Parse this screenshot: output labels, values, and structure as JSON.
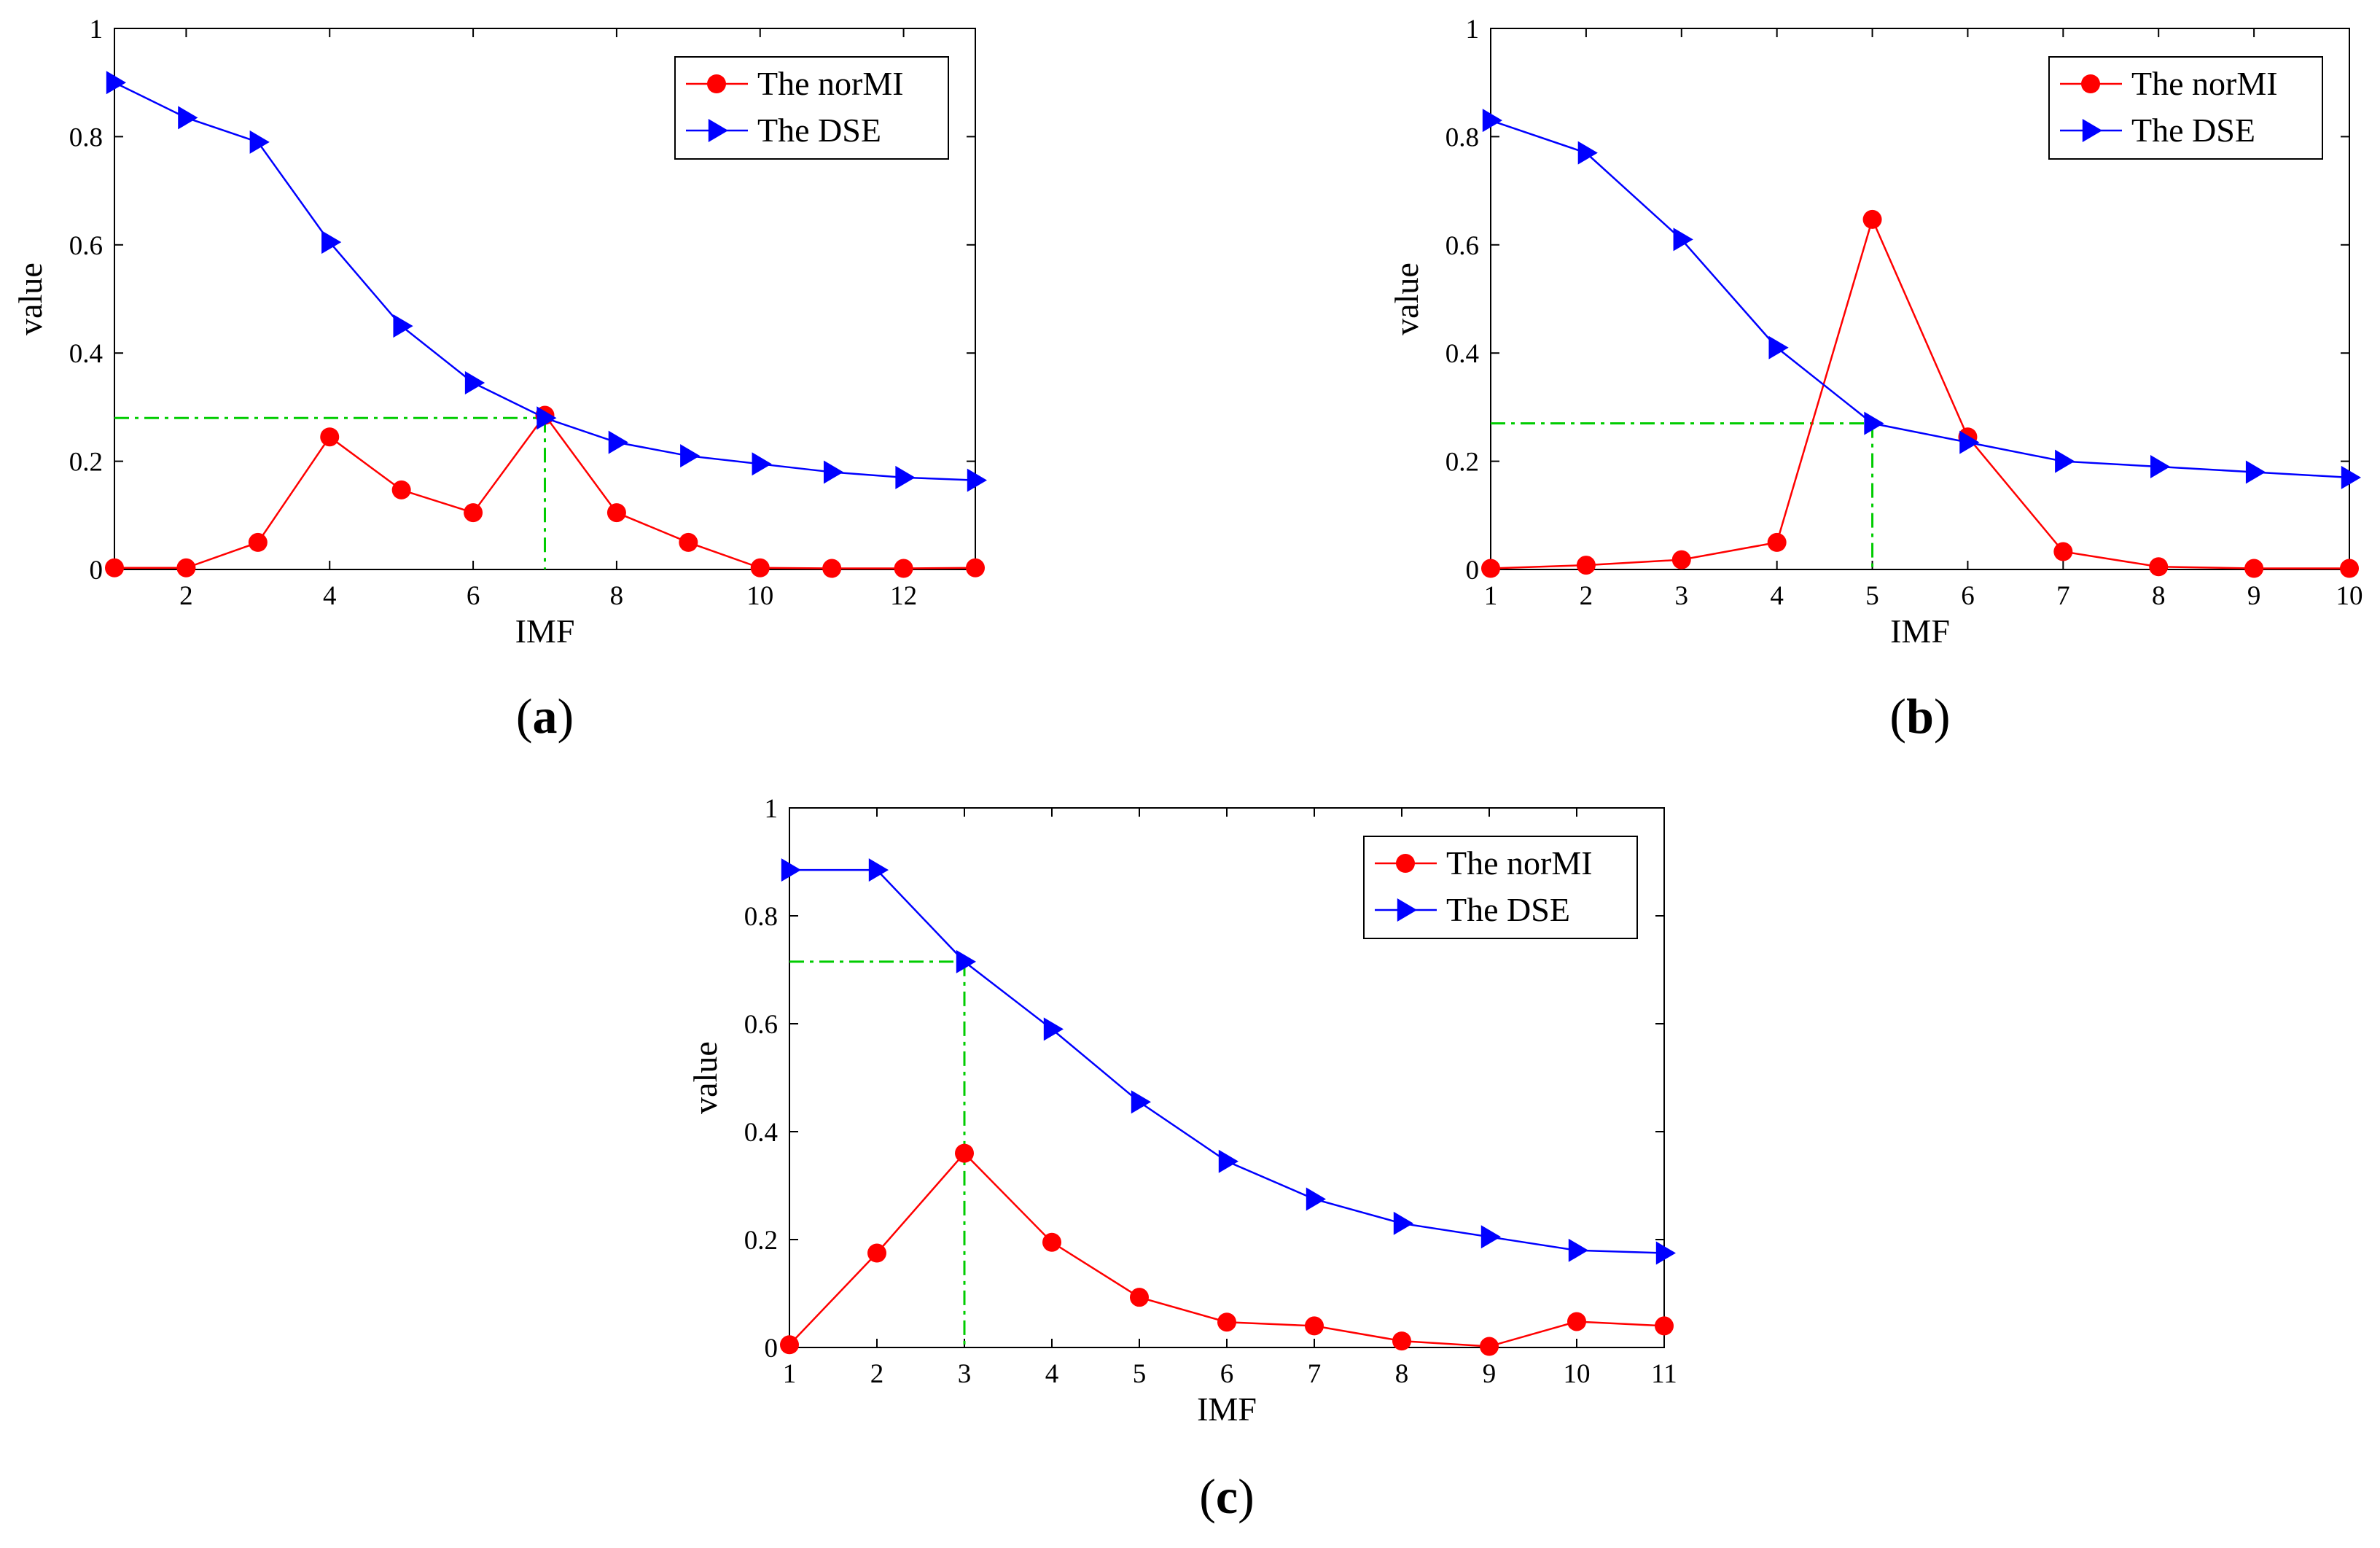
{
  "figure": {
    "panel_labels": [
      "(a)",
      "(b)",
      "(c)"
    ]
  },
  "colors": {
    "normi": "#ff0000",
    "dse": "#0000ff",
    "marker_line": "#00cc00",
    "axis": "#000000"
  },
  "chart_data": [
    {
      "panel": "a",
      "label_letter": "a",
      "type": "line",
      "xlabel": "IMF",
      "ylabel": "value",
      "xlim": [
        1,
        13
      ],
      "ylim": [
        0,
        1
      ],
      "xticks": [
        2,
        4,
        6,
        8,
        10,
        12
      ],
      "yticks": [
        0,
        0.2,
        0.4,
        0.6,
        0.8,
        1
      ],
      "ytick_labels": [
        "0",
        "0.2",
        "0.4",
        "0.6",
        "0.8",
        "1"
      ],
      "legend": {
        "position": "top-right",
        "entries": [
          "The norMI",
          "The DSE"
        ]
      },
      "series": [
        {
          "name": "The norMI",
          "marker": "circle",
          "color": "#ff0000",
          "x": [
            1,
            2,
            3,
            4,
            5,
            6,
            7,
            8,
            9,
            10,
            11,
            12,
            13
          ],
          "values": [
            0.003,
            0.003,
            0.05,
            0.245,
            0.147,
            0.105,
            0.285,
            0.105,
            0.05,
            0.003,
            0.002,
            0.002,
            0.003
          ]
        },
        {
          "name": "The DSE",
          "marker": "triangle-right",
          "color": "#0000ff",
          "x": [
            1,
            2,
            3,
            4,
            5,
            6,
            7,
            8,
            9,
            10,
            11,
            12,
            13
          ],
          "values": [
            0.9,
            0.835,
            0.79,
            0.605,
            0.45,
            0.345,
            0.28,
            0.235,
            0.21,
            0.195,
            0.18,
            0.17,
            0.165
          ]
        }
      ],
      "annotation": {
        "type": "dash-dot guide",
        "x": 7,
        "y": 0.28
      }
    },
    {
      "panel": "b",
      "label_letter": "b",
      "type": "line",
      "xlabel": "IMF",
      "ylabel": "value",
      "xlim": [
        1,
        10
      ],
      "ylim": [
        0,
        1
      ],
      "xticks": [
        1,
        2,
        3,
        4,
        5,
        6,
        7,
        8,
        9,
        10
      ],
      "yticks": [
        0,
        0.2,
        0.4,
        0.6,
        0.8,
        1
      ],
      "ytick_labels": [
        "0",
        "0.2",
        "0.4",
        "0.6",
        "0.8",
        "1"
      ],
      "legend": {
        "position": "top-right",
        "entries": [
          "The norMI",
          "The DSE"
        ]
      },
      "series": [
        {
          "name": "The norMI",
          "marker": "circle",
          "color": "#ff0000",
          "x": [
            1,
            2,
            3,
            4,
            5,
            6,
            7,
            8,
            9,
            10
          ],
          "values": [
            0.002,
            0.008,
            0.018,
            0.05,
            0.647,
            0.245,
            0.033,
            0.005,
            0.002,
            0.002
          ]
        },
        {
          "name": "The DSE",
          "marker": "triangle-right",
          "color": "#0000ff",
          "x": [
            1,
            2,
            3,
            4,
            5,
            6,
            7,
            8,
            9,
            10
          ],
          "values": [
            0.83,
            0.77,
            0.61,
            0.41,
            0.27,
            0.235,
            0.2,
            0.19,
            0.18,
            0.17
          ]
        }
      ],
      "annotation": {
        "type": "dash-dot guide",
        "x": 5,
        "y": 0.27
      }
    },
    {
      "panel": "c",
      "label_letter": "c",
      "type": "line",
      "xlabel": "IMF",
      "ylabel": "value",
      "xlim": [
        1,
        11
      ],
      "ylim": [
        0,
        1
      ],
      "xticks": [
        1,
        2,
        3,
        4,
        5,
        6,
        7,
        8,
        9,
        10,
        11
      ],
      "yticks": [
        0,
        0.2,
        0.4,
        0.6,
        0.8,
        1
      ],
      "ytick_labels": [
        "0",
        "0.2",
        "0.4",
        "0.6",
        "0.8",
        "1"
      ],
      "legend": {
        "position": "top-right",
        "entries": [
          "The norMI",
          "The DSE"
        ]
      },
      "series": [
        {
          "name": "The norMI",
          "marker": "circle",
          "color": "#ff0000",
          "x": [
            1,
            2,
            3,
            4,
            5,
            6,
            7,
            8,
            9,
            10,
            11
          ],
          "values": [
            0.005,
            0.175,
            0.36,
            0.195,
            0.093,
            0.047,
            0.04,
            0.012,
            0.002,
            0.048,
            0.04
          ]
        },
        {
          "name": "The DSE",
          "marker": "triangle-right",
          "color": "#0000ff",
          "x": [
            1,
            2,
            3,
            4,
            5,
            6,
            7,
            8,
            9,
            10,
            11
          ],
          "values": [
            0.885,
            0.885,
            0.715,
            0.59,
            0.455,
            0.345,
            0.275,
            0.23,
            0.205,
            0.18,
            0.175
          ]
        }
      ],
      "annotation": {
        "type": "dash-dot guide",
        "x": 3,
        "y": 0.715
      }
    }
  ]
}
